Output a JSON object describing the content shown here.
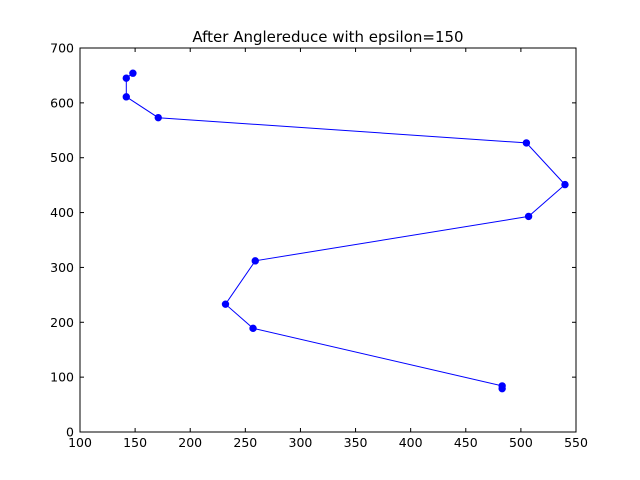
{
  "chart_data": {
    "type": "line",
    "title": "After Anglereduce with epsilon=150",
    "xlabel": "",
    "ylabel": "",
    "xlim": [
      100,
      550
    ],
    "ylim": [
      0,
      700
    ],
    "xticks": [
      100,
      150,
      200,
      250,
      300,
      350,
      400,
      450,
      500,
      550
    ],
    "yticks": [
      0,
      100,
      200,
      300,
      400,
      500,
      600,
      700
    ],
    "grid": false,
    "series": [
      {
        "color": "#0000ff",
        "marker": "circle",
        "x": [
          148,
          142,
          142,
          171,
          505,
          540,
          507,
          259,
          232,
          257,
          483,
          483
        ],
        "y": [
          654,
          645,
          611,
          573,
          527,
          451,
          393,
          312,
          233,
          189,
          84,
          79
        ]
      }
    ]
  }
}
